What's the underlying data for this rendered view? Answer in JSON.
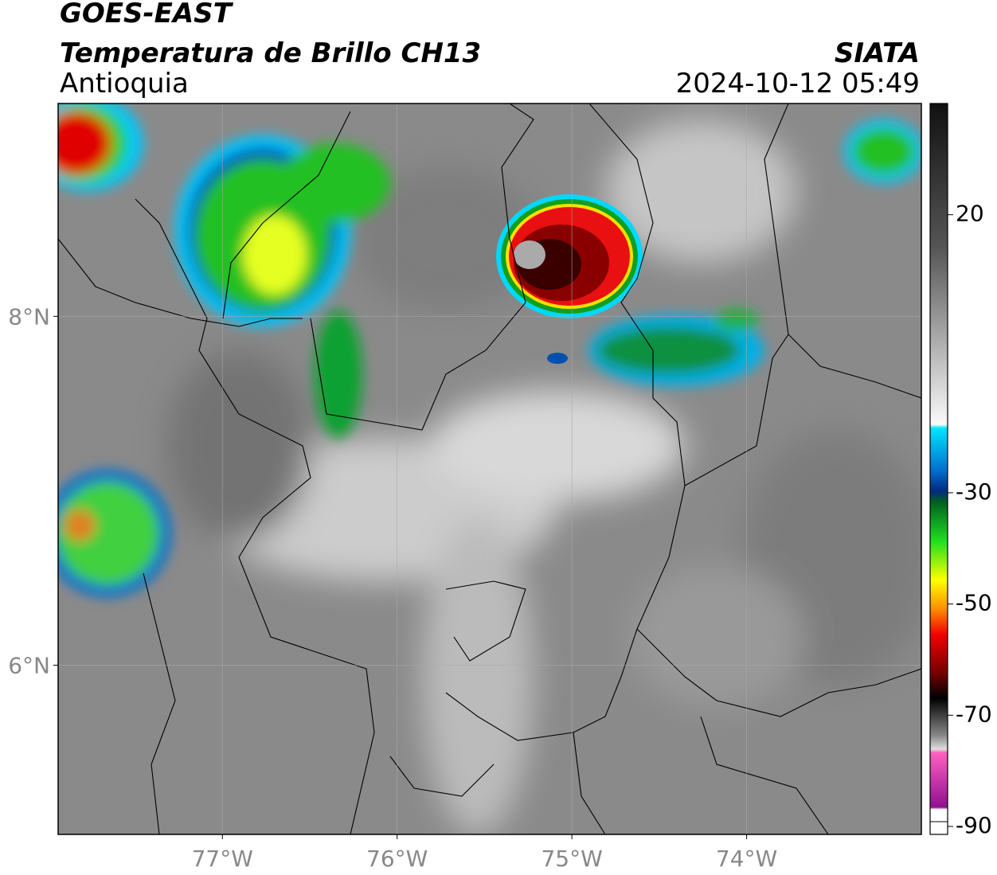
{
  "header": {
    "title": "GOES-EAST",
    "subtitle": "Temperatura de Brillo CH13",
    "region": "Antioquia",
    "source": "SIATA",
    "datetime": "2024-10-12 05:49"
  },
  "map": {
    "xlim": [
      -77.94,
      -73.0
    ],
    "ylim": [
      5.03,
      9.22
    ],
    "xticks": [
      {
        "value": -77,
        "label": "77°W"
      },
      {
        "value": -76,
        "label": "76°W"
      },
      {
        "value": -75,
        "label": "75°W"
      },
      {
        "value": -74,
        "label": "74°W"
      }
    ],
    "yticks": [
      {
        "value": 6,
        "label": "6°N"
      },
      {
        "value": 8,
        "label": "8°N"
      }
    ],
    "grid": true
  },
  "colorbar": {
    "lim": [
      40,
      -90
    ],
    "ticks": [
      20,
      -30,
      -50,
      -70,
      -90
    ]
  }
}
